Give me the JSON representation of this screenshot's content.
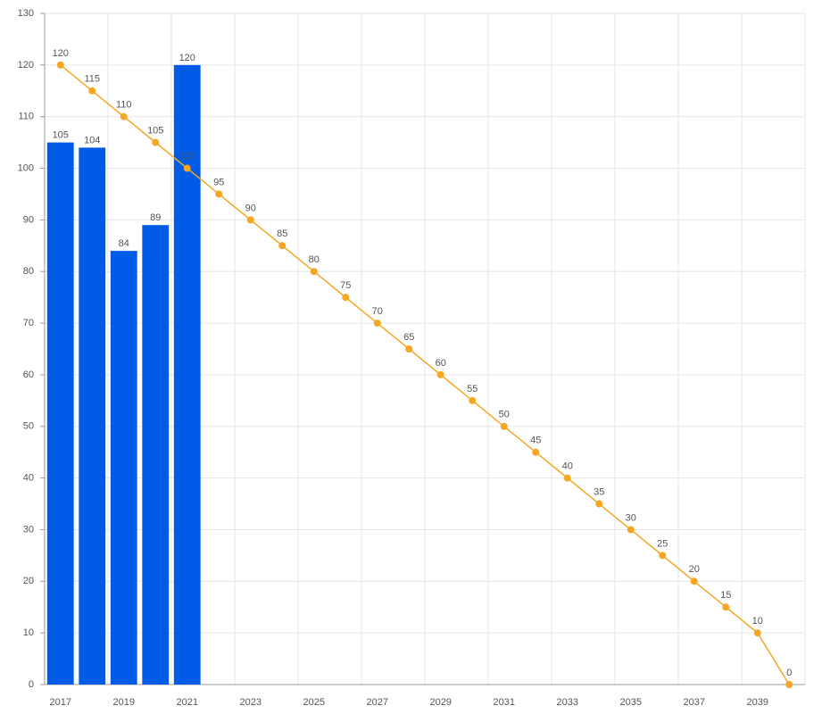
{
  "chart_data": {
    "type": "combo",
    "categories": [
      "2017",
      null,
      "2019",
      null,
      "2021",
      null,
      "2023",
      null,
      "2025",
      null,
      "2027",
      null,
      "2029",
      null,
      "2031",
      null,
      "2033",
      null,
      "2035",
      null,
      "2037",
      null,
      "2039",
      null
    ],
    "series": [
      {
        "type": "bar",
        "color": "#005ce6",
        "values": [
          105,
          104,
          84,
          89,
          120,
          null,
          null,
          null,
          null,
          null,
          null,
          null,
          null,
          null,
          null,
          null,
          null,
          null,
          null,
          null,
          null,
          null,
          null,
          null
        ]
      },
      {
        "type": "line",
        "color": "#f5a623",
        "values": [
          120,
          115,
          110,
          105,
          100,
          95,
          90,
          85,
          80,
          75,
          70,
          65,
          60,
          55,
          50,
          45,
          40,
          35,
          30,
          25,
          20,
          15,
          10,
          0
        ]
      }
    ],
    "ylim": [
      0,
      130
    ],
    "yticks": [
      0,
      10,
      20,
      30,
      40,
      50,
      60,
      70,
      80,
      90,
      100,
      110,
      120,
      130
    ],
    "grid": true
  }
}
